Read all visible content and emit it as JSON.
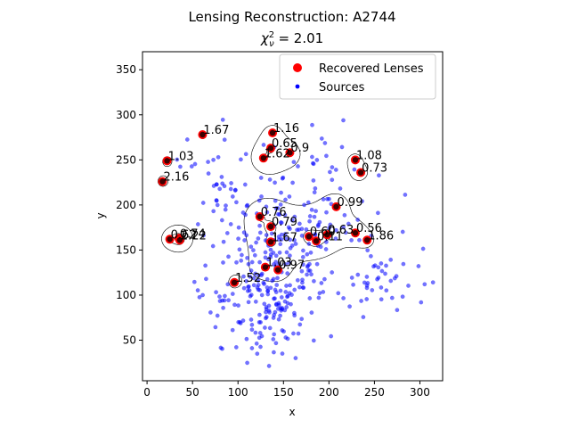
{
  "chart_data": {
    "type": "scatter",
    "title": "Lensing Reconstruction: A2744",
    "subtitle": "χ²ν = 2.01",
    "subtitle_parts": {
      "symbol": "χ",
      "superscript": "2",
      "subscript": "ν",
      "rest": " = 2.01"
    },
    "xlabel": "x",
    "ylabel": "y",
    "xlim": [
      -5,
      325
    ],
    "ylim": [
      5,
      370
    ],
    "xticks": [
      0,
      50,
      100,
      150,
      200,
      250,
      300
    ],
    "yticks": [
      50,
      100,
      150,
      200,
      250,
      300,
      350
    ],
    "legend": {
      "position": "top-right",
      "entries": [
        {
          "label": "Recovered Lenses",
          "color": "#ff0000",
          "marker": "circle-large"
        },
        {
          "label": "Sources",
          "color": "#0000ff",
          "marker": "circle-small"
        }
      ]
    },
    "colors": {
      "lens": "#ff0000",
      "lens_core": "#1a0000",
      "source": "#0000ff",
      "contour": "#000000"
    },
    "lenses": [
      {
        "x": 61,
        "y": 278,
        "label": "1.67"
      },
      {
        "x": 22,
        "y": 249,
        "label": "1.03"
      },
      {
        "x": 17,
        "y": 226,
        "label": "2.16"
      },
      {
        "x": 25,
        "y": 162,
        "label": "0.62"
      },
      {
        "x": 35,
        "y": 163,
        "label": "0.74"
      },
      {
        "x": 36,
        "y": 161,
        "label": "2.22"
      },
      {
        "x": 96,
        "y": 114,
        "label": "1.52"
      },
      {
        "x": 138,
        "y": 280,
        "label": "1.16"
      },
      {
        "x": 136,
        "y": 263,
        "label": "0.65"
      },
      {
        "x": 157,
        "y": 258,
        "label": "0.9"
      },
      {
        "x": 128,
        "y": 252,
        "label": "1.62"
      },
      {
        "x": 124,
        "y": 187,
        "label": "0.76"
      },
      {
        "x": 136,
        "y": 176,
        "label": "0.79"
      },
      {
        "x": 136,
        "y": 159,
        "label": "1.67"
      },
      {
        "x": 130,
        "y": 131,
        "label": "1.03"
      },
      {
        "x": 144,
        "y": 128,
        "label": "0.97"
      },
      {
        "x": 178,
        "y": 165,
        "label": "0.60"
      },
      {
        "x": 186,
        "y": 160,
        "label": "0.11"
      },
      {
        "x": 208,
        "y": 198,
        "label": "0.99"
      },
      {
        "x": 198,
        "y": 167,
        "label": "0.63"
      },
      {
        "x": 229,
        "y": 169,
        "label": "0.56"
      },
      {
        "x": 242,
        "y": 161,
        "label": "1.86"
      },
      {
        "x": 229,
        "y": 250,
        "label": "1.08"
      },
      {
        "x": 235,
        "y": 236,
        "label": "0.73"
      }
    ],
    "sources": {
      "count": 420,
      "distribution": "clustered",
      "clusters": [
        {
          "x": 150,
          "y": 150,
          "spread": 70,
          "weight": 0.55
        },
        {
          "x": 130,
          "y": 85,
          "spread": 50,
          "weight": 0.2
        },
        {
          "x": 260,
          "y": 120,
          "spread": 45,
          "weight": 0.1
        },
        {
          "x": 80,
          "y": 230,
          "spread": 45,
          "weight": 0.1
        },
        {
          "x": 200,
          "y": 250,
          "spread": 40,
          "weight": 0.05
        }
      ],
      "xrange": [
        -5,
        320
      ],
      "yrange": [
        15,
        325
      ]
    }
  }
}
